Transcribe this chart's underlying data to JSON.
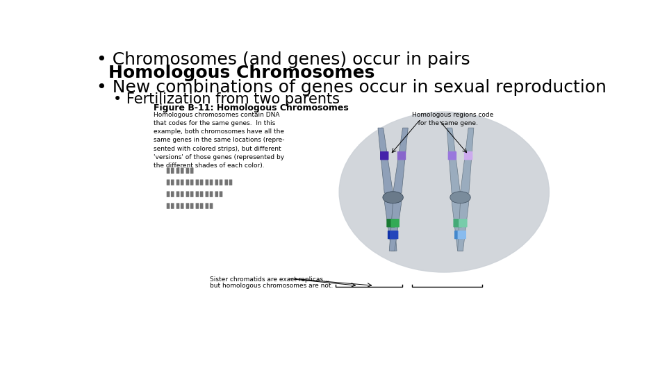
{
  "background_color": "#ffffff",
  "bullet1_line1": "Chromosomes (and genes) occur in pairs",
  "bullet1_line2": "Homologous Chromosomes",
  "bullet2_line1": "New combinations of genes occur in sexual reproduction",
  "bullet3_line1": "Fertilization from two parents",
  "fig_title": "Figure B-11: Homologous Chromosomes",
  "fig_text_left": "Homologous chromosomes contain DNA\nthat codes for the same genes.  In this\nexample, both chromosomes have all the\nsame genes in the same locations (repre-\nsented with colored strips), but different\n'versions' of those genes (represented by\nthe different shades of each color).",
  "fig_text_right": "Homologous regions code\n   for the same gene.",
  "fig_text_bottom1": "Sister chromatids are exact replicas...",
  "fig_text_bottom2": "but homologous chromosomes are not.",
  "text_color": "#000000",
  "bullet_fontsize": 18,
  "bold_fontsize": 18,
  "sub_bullet_fontsize": 15,
  "fig_title_fontsize": 9,
  "fig_body_fontsize": 6.5
}
